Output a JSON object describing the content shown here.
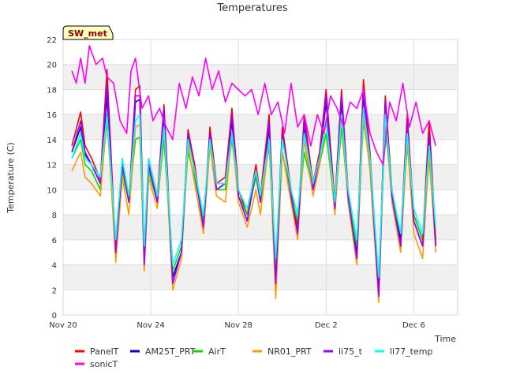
{
  "chart_data": {
    "type": "line",
    "title": "Temperatures",
    "xlabel": "Time",
    "ylabel": "Temperature (C)",
    "badge": "SW_met",
    "xlim": [
      0,
      18
    ],
    "ylim": [
      0,
      22
    ],
    "x_ticks": [
      {
        "value": 0,
        "label": "Nov 20"
      },
      {
        "value": 4,
        "label": "Nov 24"
      },
      {
        "value": 8,
        "label": "Nov 28"
      },
      {
        "value": 12,
        "label": "Dec 2"
      },
      {
        "value": 16,
        "label": "Dec 6"
      }
    ],
    "y_ticks": [
      0,
      2,
      4,
      6,
      8,
      10,
      12,
      14,
      16,
      18,
      20,
      22
    ],
    "x_unit": "days since Nov 20",
    "series": [
      {
        "name": "PanelT",
        "color": "#ff0000",
        "x": [
          0.4,
          0.8,
          1.0,
          1.3,
          1.7,
          2.0,
          2.4,
          2.7,
          3.0,
          3.3,
          3.5,
          3.7,
          3.9,
          4.3,
          4.6,
          5.0,
          5.4,
          5.7,
          6.0,
          6.4,
          6.7,
          7.0,
          7.4,
          7.7,
          8.0,
          8.4,
          8.8,
          9.0,
          9.4,
          9.7,
          10.0,
          10.4,
          10.7,
          11.0,
          11.4,
          11.7,
          12.0,
          12.4,
          12.7,
          13.0,
          13.4,
          13.7,
          14.0,
          14.4,
          14.7,
          15.0,
          15.4,
          15.7,
          16.0,
          16.4,
          16.7,
          17.0
        ],
        "y": [
          13.5,
          16.2,
          13.5,
          12.5,
          10.8,
          19.6,
          5.0,
          12.5,
          9.0,
          18.0,
          18.3,
          5.0,
          12.5,
          9.5,
          16.8,
          3.0,
          5.0,
          14.8,
          12.0,
          7.0,
          15.0,
          10.5,
          11.0,
          16.5,
          10.0,
          8.0,
          12.0,
          9.5,
          16.0,
          3.5,
          15.0,
          10.0,
          7.0,
          16.0,
          10.5,
          13.0,
          18.0,
          9.0,
          18.0,
          10.0,
          5.0,
          18.8,
          13.0,
          2.0,
          17.5,
          10.0,
          6.0,
          16.0,
          8.0,
          6.0,
          15.5,
          6.0
        ]
      },
      {
        "name": "AM25T_PRT",
        "color": "#0000cc",
        "x": [
          0.4,
          0.8,
          1.0,
          1.3,
          1.7,
          2.0,
          2.4,
          2.7,
          3.0,
          3.3,
          3.5,
          3.7,
          3.9,
          4.3,
          4.6,
          5.0,
          5.4,
          5.7,
          6.0,
          6.4,
          6.7,
          7.0,
          7.4,
          7.7,
          8.0,
          8.4,
          8.8,
          9.0,
          9.4,
          9.7,
          10.0,
          10.4,
          10.7,
          11.0,
          11.4,
          11.7,
          12.0,
          12.4,
          12.7,
          13.0,
          13.4,
          13.7,
          14.0,
          14.4,
          14.7,
          15.0,
          15.4,
          15.7,
          16.0,
          16.4,
          16.7,
          17.0
        ],
        "y": [
          13.0,
          15.0,
          12.8,
          12.0,
          10.5,
          17.5,
          5.2,
          12.0,
          9.0,
          17.0,
          17.2,
          4.5,
          12.0,
          9.0,
          16.0,
          3.0,
          5.0,
          14.0,
          11.5,
          7.0,
          14.5,
          10.0,
          10.5,
          15.5,
          9.5,
          7.5,
          11.5,
          9.0,
          15.0,
          3.2,
          14.5,
          9.5,
          6.5,
          15.0,
          10.0,
          12.5,
          17.0,
          8.5,
          17.0,
          9.5,
          5.0,
          17.5,
          12.5,
          2.2,
          17.0,
          9.5,
          6.0,
          15.0,
          7.5,
          5.5,
          14.5,
          5.5
        ]
      },
      {
        "name": "AirT",
        "color": "#00dd00",
        "x": [
          0.4,
          0.8,
          1.0,
          1.3,
          1.7,
          2.0,
          2.4,
          2.7,
          3.0,
          3.3,
          3.5,
          3.7,
          3.9,
          4.3,
          4.6,
          5.0,
          5.4,
          5.7,
          6.0,
          6.4,
          6.7,
          7.0,
          7.4,
          7.7,
          8.0,
          8.4,
          8.8,
          9.0,
          9.4,
          9.7,
          10.0,
          10.4,
          10.7,
          11.0,
          11.4,
          11.7,
          12.0,
          12.4,
          12.7,
          13.0,
          13.4,
          13.7,
          14.0,
          14.4,
          14.7,
          15.0,
          15.4,
          15.7,
          16.0,
          16.4,
          16.7,
          17.0
        ],
        "y": [
          12.5,
          14.0,
          12.0,
          11.5,
          10.0,
          15.5,
          6.0,
          11.5,
          9.0,
          14.0,
          14.2,
          5.0,
          11.5,
          9.0,
          14.0,
          3.5,
          5.5,
          13.0,
          11.0,
          7.5,
          13.5,
          10.0,
          10.0,
          14.0,
          9.5,
          8.0,
          11.0,
          9.0,
          13.5,
          4.0,
          13.0,
          9.5,
          7.5,
          13.0,
          10.0,
          12.0,
          14.5,
          8.5,
          15.0,
          9.5,
          5.5,
          15.5,
          12.0,
          3.0,
          15.0,
          9.5,
          6.5,
          13.5,
          8.0,
          6.0,
          12.5,
          6.0
        ]
      },
      {
        "name": "NR01_PRT",
        "color": "#ff9900",
        "x": [
          0.4,
          0.8,
          1.0,
          1.3,
          1.7,
          2.0,
          2.4,
          2.7,
          3.0,
          3.3,
          3.5,
          3.7,
          3.9,
          4.3,
          4.6,
          5.0,
          5.4,
          5.7,
          6.0,
          6.4,
          6.7,
          7.0,
          7.4,
          7.7,
          8.0,
          8.4,
          8.8,
          9.0,
          9.4,
          9.7,
          10.0,
          10.4,
          10.7,
          11.0,
          11.4,
          11.7,
          12.0,
          12.4,
          12.7,
          13.0,
          13.4,
          13.7,
          14.0,
          14.4,
          14.7,
          15.0,
          15.4,
          15.7,
          16.0,
          16.4,
          16.7,
          17.0
        ],
        "y": [
          11.5,
          13.0,
          11.0,
          10.5,
          9.5,
          16.0,
          4.2,
          11.0,
          8.0,
          15.0,
          15.2,
          3.5,
          11.0,
          8.5,
          15.0,
          2.0,
          4.5,
          13.5,
          10.5,
          6.5,
          13.5,
          9.5,
          9.0,
          14.5,
          9.0,
          7.0,
          10.0,
          8.0,
          14.0,
          1.3,
          13.0,
          9.0,
          6.0,
          14.0,
          9.5,
          12.0,
          15.5,
          8.0,
          16.0,
          9.0,
          4.0,
          16.0,
          11.5,
          1.0,
          16.0,
          9.0,
          5.0,
          14.0,
          6.5,
          4.5,
          13.0,
          5.0
        ]
      },
      {
        "name": "li75_t",
        "color": "#9900ff",
        "x": [
          0.4,
          0.8,
          1.0,
          1.3,
          1.7,
          2.0,
          2.4,
          2.7,
          3.0,
          3.3,
          3.5,
          3.7,
          3.9,
          4.3,
          4.6,
          5.0,
          5.4,
          5.7,
          6.0,
          6.4,
          6.7,
          7.0,
          7.4,
          7.7,
          8.0,
          8.4,
          8.8,
          9.0,
          9.4,
          9.7,
          10.0,
          10.4,
          10.7,
          11.0,
          11.4,
          11.7,
          12.0,
          12.4,
          12.7,
          13.0,
          13.4,
          13.7,
          14.0,
          14.4,
          14.7,
          15.0,
          15.4,
          15.7,
          16.0,
          16.4,
          16.7,
          17.0
        ],
        "y": [
          13.0,
          15.5,
          13.0,
          12.0,
          10.5,
          18.5,
          5.0,
          12.0,
          9.0,
          17.5,
          17.5,
          4.0,
          12.0,
          9.0,
          16.5,
          2.5,
          5.0,
          14.5,
          11.5,
          7.0,
          14.5,
          10.0,
          10.5,
          16.0,
          9.5,
          7.5,
          11.5,
          9.0,
          15.5,
          2.5,
          14.5,
          9.5,
          6.5,
          15.5,
          10.0,
          12.5,
          17.5,
          8.5,
          17.5,
          9.5,
          4.5,
          18.0,
          12.5,
          1.5,
          17.0,
          9.5,
          5.5,
          15.5,
          7.5,
          5.5,
          14.5,
          5.5
        ]
      },
      {
        "name": "li77_temp",
        "color": "#00ffff",
        "x": [
          0.4,
          0.8,
          1.0,
          1.3,
          1.7,
          2.0,
          2.4,
          2.7,
          3.0,
          3.3,
          3.5,
          3.7,
          3.9,
          4.3,
          4.6,
          5.0,
          5.4,
          5.7,
          6.0,
          6.4,
          6.7,
          7.0,
          7.4,
          7.7,
          8.0,
          8.4,
          8.8,
          9.0,
          9.4,
          9.7,
          10.0,
          10.4,
          10.7,
          11.0,
          11.4,
          11.7,
          12.0,
          12.4,
          12.7,
          13.0,
          13.4,
          13.7,
          14.0,
          14.4,
          14.7,
          15.0,
          15.4,
          15.7,
          16.0,
          16.4,
          16.7,
          17.0
        ],
        "y": [
          12.5,
          14.5,
          12.5,
          12.0,
          11.0,
          16.0,
          6.0,
          12.5,
          9.5,
          15.5,
          16.0,
          5.5,
          12.5,
          9.5,
          15.0,
          4.0,
          6.0,
          14.0,
          11.5,
          8.0,
          14.0,
          10.5,
          10.5,
          14.5,
          10.0,
          8.5,
          11.5,
          9.5,
          14.0,
          4.5,
          14.0,
          10.0,
          8.0,
          14.5,
          10.5,
          12.5,
          15.5,
          9.0,
          16.0,
          10.0,
          6.0,
          16.5,
          12.5,
          3.0,
          16.0,
          10.0,
          6.5,
          14.5,
          8.5,
          6.5,
          13.5,
          7.0
        ]
      },
      {
        "name": "sonicT",
        "color": "#ff00ff",
        "x": [
          0.4,
          0.6,
          0.8,
          1.0,
          1.2,
          1.5,
          1.8,
          2.0,
          2.3,
          2.6,
          2.9,
          3.1,
          3.3,
          3.6,
          3.9,
          4.1,
          4.4,
          4.7,
          5.0,
          5.3,
          5.6,
          5.9,
          6.2,
          6.5,
          6.8,
          7.1,
          7.4,
          7.7,
          8.0,
          8.3,
          8.6,
          8.9,
          9.2,
          9.5,
          9.8,
          10.1,
          10.4,
          10.7,
          11.0,
          11.3,
          11.6,
          11.9,
          12.2,
          12.5,
          12.8,
          13.1,
          13.4,
          13.7,
          14.0,
          14.3,
          14.6,
          14.9,
          15.2,
          15.5,
          15.8,
          16.1,
          16.4,
          16.7,
          17.0
        ],
        "y": [
          19.5,
          18.5,
          20.5,
          18.5,
          21.5,
          20.0,
          20.5,
          19.0,
          18.5,
          15.5,
          14.5,
          19.5,
          20.5,
          16.5,
          17.5,
          15.5,
          16.5,
          15.0,
          14.0,
          18.5,
          16.5,
          19.0,
          17.5,
          20.5,
          18.0,
          19.5,
          17.0,
          18.5,
          18.0,
          17.5,
          18.0,
          16.0,
          18.5,
          16.0,
          17.0,
          14.5,
          18.5,
          15.0,
          16.0,
          13.5,
          16.0,
          14.5,
          17.5,
          16.5,
          15.0,
          17.0,
          16.5,
          18.0,
          14.5,
          13.0,
          12.0,
          17.0,
          15.5,
          18.5,
          15.0,
          17.0,
          14.5,
          15.5,
          13.5
        ]
      }
    ],
    "legend": {
      "placement": "bottom"
    }
  }
}
